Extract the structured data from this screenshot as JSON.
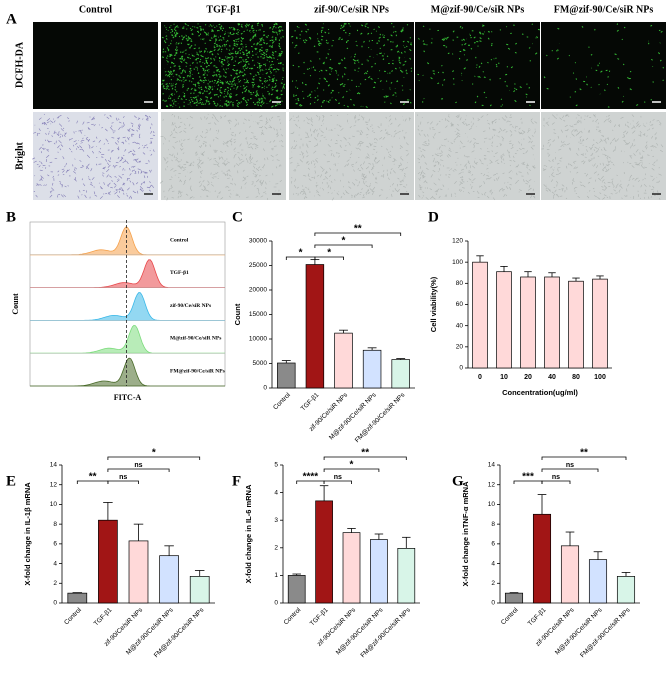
{
  "figure_a": {
    "panel": "A",
    "columns": [
      "Control",
      "TGF-β1",
      "zif-90/Ce/siR NPs",
      "M@zif-90/Ce/siR NPs",
      "FM@zif-90/Ce/siR NPs"
    ],
    "rows": [
      "DCFH-DA",
      "Bright"
    ]
  },
  "chart_data": [
    {
      "type": "density",
      "panel": "B",
      "xlabel": "FITC-A",
      "ylabel": "Count",
      "xscale": "log",
      "xlim": [
        1,
        10000000
      ],
      "reference": 2900,
      "series": [
        {
          "name": "Control",
          "color": "#f5a04a",
          "peak": 2900
        },
        {
          "name": "TGF-β1",
          "color": "#e8474a",
          "peak": 19500
        },
        {
          "name": "zif-90/Ce/siR NPs",
          "color": "#3ab8e8",
          "peak": 8500
        },
        {
          "name": "M@zif-90/Ce/siR NPs",
          "color": "#7ddc7d",
          "peak": 5600
        },
        {
          "name": "FM@zif-90/Ce/siR NPs",
          "color": "#4a6b2a",
          "peak": 3700
        }
      ]
    },
    {
      "type": "bar",
      "panel": "C",
      "ylabel": "Count",
      "categories": [
        "Control",
        "TGF-β1",
        "zif-90/Ce/siR NPs",
        "M@zif-90/Ce/siR NPs",
        "FM@zif-90/Ce/siR NPs"
      ],
      "values": [
        5100,
        25200,
        11200,
        7700,
        5800
      ],
      "errors": [
        500,
        1000,
        600,
        500,
        200
      ],
      "colors": [
        "#8a8a8a",
        "#a11515",
        "#ffd9d9",
        "#d2e2ff",
        "#d8f5e8"
      ],
      "ylim": [
        0,
        30000
      ],
      "yticks": [
        0,
        5000,
        10000,
        15000,
        20000,
        25000,
        30000
      ],
      "brackets": [
        {
          "label": "*",
          "groups": [
            "Control",
            "TGF-β1"
          ]
        },
        {
          "label": "*",
          "groups": [
            "TGF-β1",
            "zif-90/Ce/siR NPs"
          ]
        },
        {
          "label": "*",
          "groups": [
            "TGF-β1",
            "M@zif-90/Ce/siR NPs"
          ]
        },
        {
          "label": "**",
          "groups": [
            "TGF-β1",
            "FM@zif-90/Ce/siR NPs"
          ]
        }
      ]
    },
    {
      "type": "bar",
      "panel": "D",
      "ylabel": "Cell viability(%)",
      "xlabel": "Concentration(ug/ml)",
      "categories": [
        "0",
        "10",
        "20",
        "40",
        "80",
        "100"
      ],
      "values": [
        100,
        91,
        86,
        86,
        82,
        84
      ],
      "errors": [
        6,
        5,
        5,
        4,
        3,
        3
      ],
      "color": "#ffd9d9",
      "ylim": [
        0,
        120
      ],
      "yticks": [
        0,
        20,
        40,
        60,
        80,
        100,
        120
      ]
    },
    {
      "type": "bar",
      "panel": "E",
      "ylabel": "X-fold change in IL-1β mRNA",
      "categories": [
        "Control",
        "TGF-β1",
        "zif-90/Ce/siR NPs",
        "M@zif-90/Ce/siR NPs",
        "FM@zif-90/Ce/siR NPs"
      ],
      "values": [
        1.0,
        8.4,
        6.3,
        4.8,
        2.7
      ],
      "errors": [
        0.05,
        1.8,
        1.7,
        1.0,
        0.6
      ],
      "colors": [
        "#8a8a8a",
        "#a11515",
        "#ffd9d9",
        "#d2e2ff",
        "#d8f5e8"
      ],
      "ylim": [
        0,
        14
      ],
      "yticks": [
        0,
        2,
        4,
        6,
        8,
        10,
        12,
        14
      ],
      "brackets": [
        {
          "label": "**",
          "groups": [
            "Control",
            "TGF-β1"
          ]
        },
        {
          "label": "ns",
          "groups": [
            "TGF-β1",
            "zif-90/Ce/siR NPs"
          ]
        },
        {
          "label": "ns",
          "groups": [
            "TGF-β1",
            "M@zif-90/Ce/siR NPs"
          ]
        },
        {
          "label": "*",
          "groups": [
            "TGF-β1",
            "FM@zif-90/Ce/siR NPs"
          ]
        }
      ]
    },
    {
      "type": "bar",
      "panel": "F",
      "ylabel": "X-fold change in IL-6 mRNA",
      "categories": [
        "Control",
        "TGF-β1",
        "zif-90/Ce/siR NPs",
        "M@zif-90/Ce/siR NPs",
        "FM@zif-90/Ce/siR NPs"
      ],
      "values": [
        1.0,
        3.7,
        2.55,
        2.3,
        1.98
      ],
      "errors": [
        0.05,
        0.55,
        0.15,
        0.2,
        0.4
      ],
      "colors": [
        "#8a8a8a",
        "#a11515",
        "#ffd9d9",
        "#d2e2ff",
        "#d8f5e8"
      ],
      "ylim": [
        0,
        5
      ],
      "yticks": [
        0,
        1,
        2,
        3,
        4,
        5
      ],
      "brackets": [
        {
          "label": "****",
          "groups": [
            "Control",
            "TGF-β1"
          ]
        },
        {
          "label": "ns",
          "groups": [
            "TGF-β1",
            "zif-90/Ce/siR NPs"
          ]
        },
        {
          "label": "*",
          "groups": [
            "TGF-β1",
            "M@zif-90/Ce/siR NPs"
          ]
        },
        {
          "label": "**",
          "groups": [
            "TGF-β1",
            "FM@zif-90/Ce/siR NPs"
          ]
        }
      ]
    },
    {
      "type": "bar",
      "panel": "G",
      "ylabel": "X-fold change inTNF-α mRNA",
      "categories": [
        "Control",
        "TGF-β1",
        "zif-90/Ce/siR NPs",
        "M@zif-90/Ce/siR NPs",
        "FM@zif-90/Ce/siR NPs"
      ],
      "values": [
        1.0,
        9.0,
        5.8,
        4.4,
        2.7
      ],
      "errors": [
        0.05,
        2.0,
        1.4,
        0.8,
        0.4
      ],
      "colors": [
        "#8a8a8a",
        "#a11515",
        "#ffd9d9",
        "#d2e2ff",
        "#d8f5e8"
      ],
      "ylim": [
        0,
        14
      ],
      "yticks": [
        0,
        2,
        4,
        6,
        8,
        10,
        12,
        14
      ],
      "brackets": [
        {
          "label": "***",
          "groups": [
            "Control",
            "TGF-β1"
          ]
        },
        {
          "label": "ns",
          "groups": [
            "TGF-β1",
            "zif-90/Ce/siR NPs"
          ]
        },
        {
          "label": "ns",
          "groups": [
            "TGF-β1",
            "M@zif-90/Ce/siR NPs"
          ]
        },
        {
          "label": "**",
          "groups": [
            "TGF-β1",
            "FM@zif-90/Ce/siR NPs"
          ]
        }
      ]
    }
  ]
}
